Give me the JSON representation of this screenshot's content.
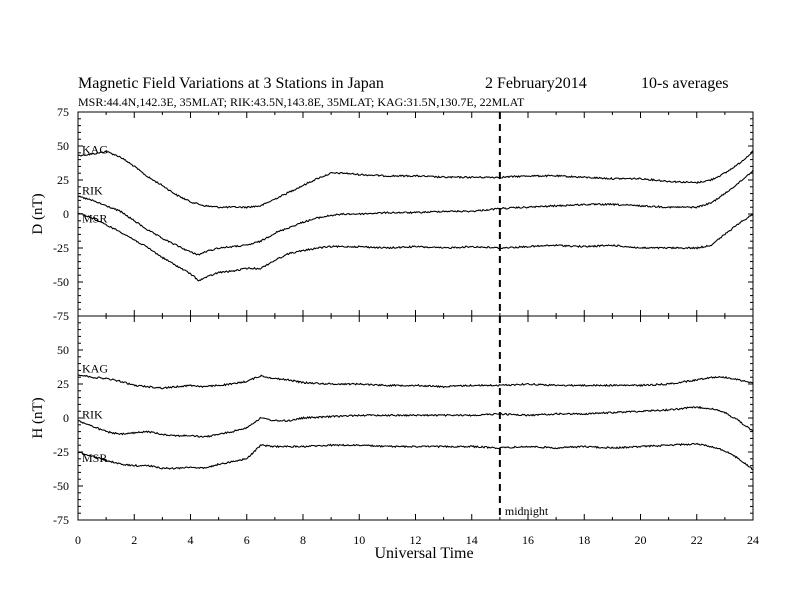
{
  "header": {
    "title_main": "Magnetic Field Variations at 3 Stations in Japan",
    "title_date": "2   February2014",
    "title_avg": "10-s averages",
    "stations_line": "MSR:44.4N,142.3E, 35MLAT;  RIK:43.5N,143.8E, 35MLAT;  KAG:31.5N,130.7E, 22MLAT"
  },
  "chart_data": {
    "type": "line",
    "xlabel": "Universal Time",
    "xlim": [
      0,
      24
    ],
    "xticks": [
      0,
      2,
      4,
      6,
      8,
      10,
      12,
      14,
      16,
      18,
      20,
      22,
      24
    ],
    "marker": {
      "x": 15,
      "label": "midnight"
    },
    "panels": [
      {
        "id": "D",
        "ylabel": "D (nT)",
        "ylim": [
          -75,
          75
        ],
        "yticks": [
          -75,
          -50,
          -25,
          0,
          25,
          50,
          75
        ],
        "series": [
          {
            "name": "KAG",
            "x": [
              0,
              0.5,
              1,
              1.5,
              2,
              2.5,
              3,
              3.5,
              4,
              4.5,
              5,
              5.5,
              6,
              6.5,
              7,
              7.5,
              8,
              8.5,
              9,
              9.5,
              10,
              11,
              12,
              13,
              14,
              15,
              16,
              17,
              18,
              19,
              20,
              21,
              22,
              22.5,
              23,
              23.5,
              24
            ],
            "y": [
              43,
              44,
              46,
              42,
              35,
              27,
              21,
              14,
              9,
              6,
              5,
              5,
              5,
              6,
              11,
              16,
              21,
              26,
              30,
              30,
              29,
              28,
              28,
              27,
              27,
              27,
              28,
              28,
              27,
              26,
              26,
              24,
              23,
              25,
              30,
              37,
              46
            ]
          },
          {
            "name": "RIK",
            "x": [
              0,
              0.5,
              1,
              1.5,
              2,
              2.5,
              3,
              3.5,
              4,
              4.3,
              4.5,
              5,
              5.5,
              6,
              6.5,
              7,
              7.5,
              8,
              8.5,
              9,
              9.5,
              10,
              11,
              12,
              13,
              14,
              15,
              16,
              17,
              18,
              19,
              20,
              21,
              22,
              22.5,
              23,
              23.5,
              24
            ],
            "y": [
              13,
              10,
              6,
              2,
              -5,
              -12,
              -18,
              -23,
              -28,
              -30,
              -28,
              -25,
              -24,
              -23,
              -20,
              -14,
              -10,
              -6,
              -3,
              -1,
              0,
              0,
              1,
              1,
              2,
              2,
              4,
              5,
              6,
              7,
              7,
              6,
              5,
              5,
              8,
              15,
              23,
              32
            ]
          },
          {
            "name": "MSR",
            "x": [
              0,
              0.5,
              1,
              1.5,
              2,
              2.5,
              3,
              3.5,
              4,
              4.3,
              4.5,
              5,
              5.5,
              6,
              6.5,
              7,
              7.5,
              8,
              8.5,
              9,
              9.5,
              10,
              11,
              12,
              13,
              14,
              15,
              16,
              17,
              18,
              19,
              20,
              21,
              22,
              22.5,
              23,
              23.5,
              24
            ],
            "y": [
              1,
              -3,
              -8,
              -13,
              -19,
              -25,
              -32,
              -38,
              -44,
              -49,
              -47,
              -43,
              -42,
              -40,
              -40,
              -34,
              -29,
              -27,
              -25,
              -24,
              -24,
              -24,
              -25,
              -24,
              -25,
              -24,
              -25,
              -24,
              -23,
              -24,
              -23,
              -25,
              -25,
              -25,
              -23,
              -15,
              -7,
              0
            ]
          }
        ]
      },
      {
        "id": "H",
        "ylabel": "H (nT)",
        "ylim": [
          -75,
          75
        ],
        "yticks": [
          -75,
          -50,
          -25,
          0,
          25,
          50,
          75
        ],
        "series": [
          {
            "name": "KAG",
            "x": [
              0,
              0.5,
              1,
              1.5,
              2,
              2.5,
              3,
              3.5,
              4,
              4.5,
              5,
              5.5,
              6,
              6.5,
              7,
              7.5,
              8,
              9,
              10,
              11,
              12,
              13,
              14,
              15,
              16,
              17,
              18,
              19,
              20,
              21,
              22,
              22.5,
              23,
              23.5,
              24
            ],
            "y": [
              32,
              30,
              29,
              27,
              24,
              23,
              22,
              23,
              24,
              23,
              24,
              25,
              27,
              31,
              29,
              28,
              26,
              25,
              25,
              24,
              24,
              23,
              24,
              24,
              25,
              24,
              24,
              24,
              24,
              25,
              28,
              30,
              30,
              28,
              26
            ]
          },
          {
            "name": "RIK",
            "x": [
              0,
              0.5,
              1,
              1.5,
              2,
              2.5,
              3,
              3.5,
              4,
              4.5,
              5,
              5.5,
              6,
              6.5,
              7,
              7.5,
              8,
              9,
              10,
              11,
              12,
              13,
              14,
              15,
              16,
              17,
              18,
              19,
              20,
              21,
              22,
              22.5,
              23,
              23.5,
              24
            ],
            "y": [
              -2,
              -6,
              -10,
              -12,
              -11,
              -10,
              -12,
              -13,
              -13,
              -14,
              -12,
              -10,
              -7,
              0,
              -2,
              -2,
              0,
              1,
              2,
              2,
              2,
              2,
              2,
              3,
              2,
              3,
              3,
              4,
              5,
              6,
              8,
              7,
              4,
              -2,
              -10
            ]
          },
          {
            "name": "MSR",
            "x": [
              0,
              0.5,
              1,
              1.5,
              2,
              2.5,
              3,
              3.5,
              4,
              4.5,
              5,
              5.5,
              6,
              6.5,
              7,
              7.5,
              8,
              9,
              10,
              11,
              12,
              13,
              14,
              15,
              16,
              17,
              18,
              19,
              20,
              21,
              22,
              22.5,
              23,
              23.5,
              24
            ],
            "y": [
              -25,
              -28,
              -31,
              -34,
              -35,
              -35,
              -37,
              -37,
              -36,
              -37,
              -34,
              -32,
              -30,
              -20,
              -21,
              -21,
              -21,
              -20,
              -20,
              -21,
              -21,
              -21,
              -21,
              -22,
              -21,
              -22,
              -21,
              -22,
              -21,
              -20,
              -19,
              -21,
              -24,
              -30,
              -38
            ]
          }
        ]
      }
    ]
  }
}
